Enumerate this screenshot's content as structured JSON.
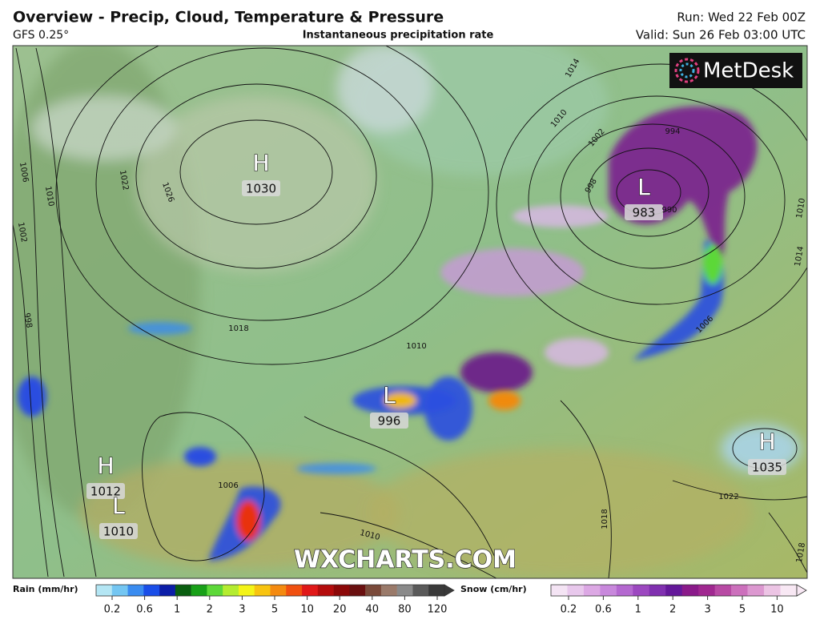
{
  "header": {
    "title": "Overview - Precip, Cloud, Temperature & Pressure",
    "model": "GFS 0.25°",
    "subtitle": "Instantaneous precipitation rate",
    "run": "Run: Wed 22 Feb 00Z",
    "valid": "Valid: Sun 26 Feb 03:00 UTC"
  },
  "logo": "MetDesk",
  "watermark": "WXCHARTS.COM",
  "pressure_centers": [
    {
      "type": "H",
      "value": 1030
    },
    {
      "type": "L",
      "value": 983
    },
    {
      "type": "L",
      "value": 996
    },
    {
      "type": "H",
      "value": 1035
    },
    {
      "type": "H",
      "value": 1012
    },
    {
      "type": "L",
      "value": 1010
    }
  ],
  "isobar_labels": [
    1006,
    1010,
    1002,
    1022,
    1026,
    998,
    1018,
    1014,
    1010,
    1002,
    994,
    998,
    990,
    1010,
    1014,
    1006,
    1010,
    1022,
    1018,
    1010,
    1006,
    1018
  ],
  "legend": {
    "rain": {
      "label": "Rain (mm/hr)",
      "ticks": [
        0.2,
        0.6,
        1,
        2,
        3,
        5,
        10,
        20,
        40,
        80,
        120
      ],
      "colors": [
        "#b4e6f4",
        "#74c6f2",
        "#3a8cf0",
        "#1a4ee8",
        "#0c1ea8",
        "#0a5e10",
        "#18a018",
        "#5cd838",
        "#b4ec30",
        "#f4f418",
        "#f8c410",
        "#f48a10",
        "#f05010",
        "#e01818",
        "#b40c0c",
        "#8c0808",
        "#6a1010",
        "#7a4a3a",
        "#9a7a6a",
        "#8a8a8a",
        "#5a5a5a",
        "#3a3a3a"
      ]
    },
    "snow": {
      "label": "Snow (cm/hr)",
      "ticks": [
        0.2,
        0.6,
        1,
        2,
        3,
        5,
        10
      ],
      "colors": [
        "#f4e4f4",
        "#e8c8ec",
        "#dca8e4",
        "#c888dc",
        "#b468d0",
        "#9c48c0",
        "#8030b0",
        "#64189a",
        "#8a1a8a",
        "#a02890",
        "#b84aa4",
        "#cc70bc",
        "#dc98d0",
        "#ecc4e4",
        "#f8e8f4"
      ]
    }
  }
}
